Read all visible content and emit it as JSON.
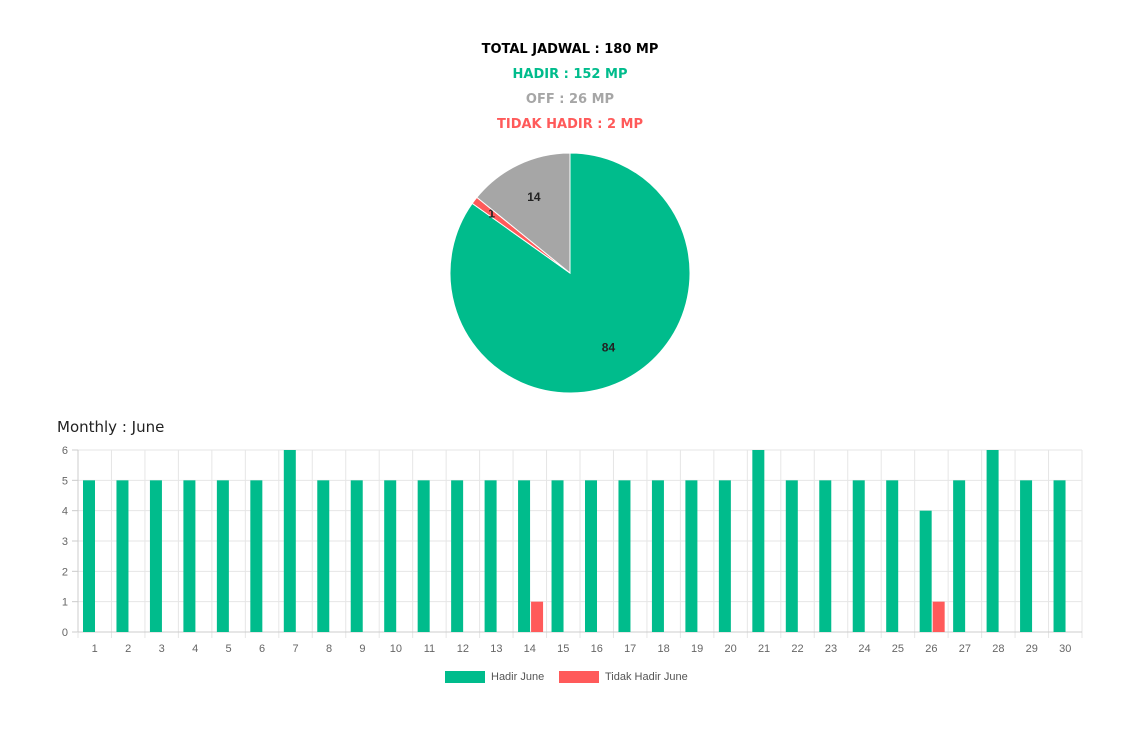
{
  "summary": {
    "total": "TOTAL JADWAL : 180 MP",
    "hadir": "HADIR : 152 MP",
    "off": "OFF : 26 MP",
    "tidak_hadir": "TIDAK HADIR : 2 MP"
  },
  "colors": {
    "hadir": "#00BC8C",
    "off": "#A6A6A6",
    "tidak_hadir": "#FF5A5A"
  },
  "monthly_title": "Monthly : June",
  "chart_data": [
    {
      "type": "pie",
      "slices": [
        {
          "value": 84,
          "label": "84",
          "color": "#00BC8C"
        },
        {
          "value": 1,
          "label": "1",
          "color": "#FF5A5A"
        },
        {
          "value": 14,
          "label": "14",
          "color": "#A6A6A6"
        }
      ]
    },
    {
      "type": "bar",
      "title": "Monthly : June",
      "categories": [
        "1",
        "2",
        "3",
        "4",
        "5",
        "6",
        "7",
        "8",
        "9",
        "10",
        "11",
        "12",
        "13",
        "14",
        "15",
        "16",
        "17",
        "18",
        "19",
        "20",
        "21",
        "22",
        "23",
        "24",
        "25",
        "26",
        "27",
        "28",
        "29",
        "30"
      ],
      "series": [
        {
          "name": "Hadir June",
          "color": "#00BC8C",
          "values": [
            5,
            5,
            5,
            5,
            5,
            5,
            6,
            5,
            5,
            5,
            5,
            5,
            5,
            5,
            5,
            5,
            5,
            5,
            5,
            5,
            6,
            5,
            5,
            5,
            5,
            4,
            5,
            6,
            5,
            5
          ]
        },
        {
          "name": "Tidak Hadir June",
          "color": "#FF5A5A",
          "values": [
            0,
            0,
            0,
            0,
            0,
            0,
            0,
            0,
            0,
            0,
            0,
            0,
            0,
            1,
            0,
            0,
            0,
            0,
            0,
            0,
            0,
            0,
            0,
            0,
            0,
            1,
            0,
            0,
            0,
            0
          ]
        }
      ],
      "ylim": [
        0,
        6
      ],
      "yticks": [
        "0",
        "1",
        "2",
        "3",
        "4",
        "5",
        "6"
      ],
      "grid": true,
      "legend": "bottom"
    }
  ]
}
